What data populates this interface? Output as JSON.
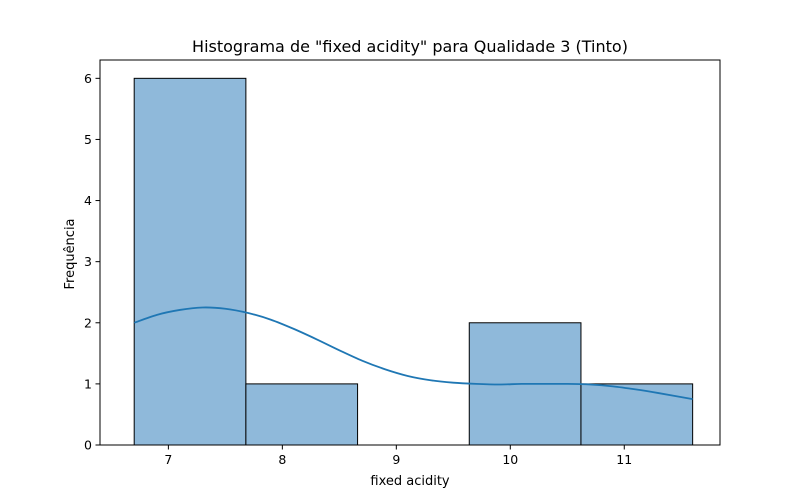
{
  "chart_data": {
    "type": "bar",
    "title": "Histograma de \"fixed acidity\" para Qualidade 3 (Tinto)",
    "xlabel": "fixed acidity",
    "ylabel": "Frequência",
    "xlim": [
      6.4,
      11.84
    ],
    "ylim": [
      0,
      6.3
    ],
    "xticks": [
      7,
      8,
      9,
      10,
      11
    ],
    "yticks": [
      0,
      1,
      2,
      3,
      4,
      5,
      6
    ],
    "bins": [
      {
        "start": 6.7,
        "end": 7.68,
        "count": 6
      },
      {
        "start": 7.68,
        "end": 8.66,
        "count": 1
      },
      {
        "start": 8.66,
        "end": 9.64,
        "count": 0
      },
      {
        "start": 9.64,
        "end": 10.62,
        "count": 2
      },
      {
        "start": 10.62,
        "end": 11.6,
        "count": 1
      }
    ],
    "kde": {
      "x": [
        6.7,
        6.9,
        7.1,
        7.3,
        7.5,
        7.7,
        7.9,
        8.1,
        8.3,
        8.5,
        8.7,
        8.9,
        9.1,
        9.3,
        9.5,
        9.7,
        9.9,
        10.1,
        10.3,
        10.5,
        10.7,
        10.9,
        11.1,
        11.3,
        11.6
      ],
      "y": [
        2.0,
        2.13,
        2.21,
        2.25,
        2.23,
        2.16,
        2.05,
        1.9,
        1.73,
        1.55,
        1.38,
        1.24,
        1.13,
        1.06,
        1.02,
        1.0,
        0.99,
        1.0,
        1.0,
        1.0,
        0.99,
        0.96,
        0.91,
        0.85,
        0.75
      ]
    },
    "grid": false,
    "colors": {
      "bar_fill": "#8fb9da",
      "bar_edge": "#000000",
      "kde_line": "#1f77b4"
    }
  }
}
